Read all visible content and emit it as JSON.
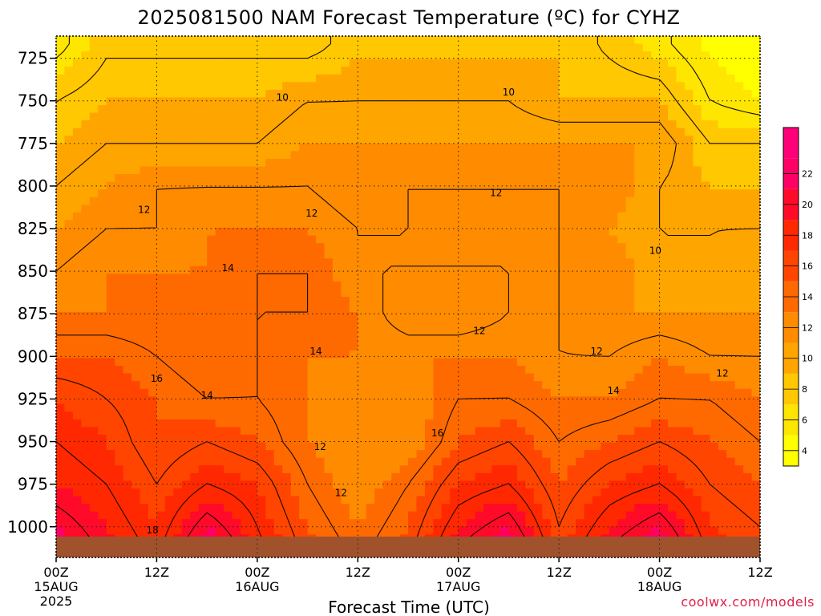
{
  "chart_data": {
    "type": "heatmap",
    "title": "2025081500 NAM Forecast Temperature (ºC) for CYHZ",
    "xlabel": "Forecast Time (UTC)",
    "ylabel": "",
    "x_ticks": [
      {
        "hour": 0,
        "label": "00Z",
        "sub": "15AUG",
        "sub2": "2025"
      },
      {
        "hour": 12,
        "label": "12Z",
        "sub": "",
        "sub2": ""
      },
      {
        "hour": 24,
        "label": "00Z",
        "sub": "16AUG",
        "sub2": ""
      },
      {
        "hour": 36,
        "label": "12Z",
        "sub": "",
        "sub2": ""
      },
      {
        "hour": 48,
        "label": "00Z",
        "sub": "17AUG",
        "sub2": ""
      },
      {
        "hour": 60,
        "label": "12Z",
        "sub": "",
        "sub2": ""
      },
      {
        "hour": 72,
        "label": "00Z",
        "sub": "18AUG",
        "sub2": ""
      },
      {
        "hour": 84,
        "label": "12Z",
        "sub": "",
        "sub2": ""
      }
    ],
    "xlim_hours": [
      0,
      84
    ],
    "y_ticks": [
      725,
      750,
      775,
      800,
      825,
      850,
      875,
      900,
      925,
      950,
      975,
      1000
    ],
    "ylim_hpa": [
      1018,
      712
    ],
    "hours": [
      0,
      6,
      12,
      18,
      24,
      30,
      36,
      42,
      48,
      54,
      60,
      66,
      72,
      78,
      84
    ],
    "levels_hpa": [
      725,
      750,
      775,
      800,
      825,
      850,
      875,
      900,
      925,
      950,
      975,
      1000
    ],
    "temperature_c": [
      [
        6,
        8,
        8,
        8,
        8,
        8,
        9,
        9,
        9,
        9,
        9,
        8,
        7,
        5,
        4
      ],
      [
        8,
        9,
        9,
        9,
        9,
        10,
        10,
        10,
        10,
        10,
        9,
        9,
        9,
        6,
        5
      ],
      [
        9,
        10,
        10,
        10,
        10,
        11,
        11,
        11,
        11,
        11,
        11,
        11,
        11,
        8,
        8
      ],
      [
        10,
        11,
        12,
        12,
        12,
        12,
        11,
        12,
        12,
        12,
        12,
        12,
        10,
        9,
        9
      ],
      [
        11,
        12,
        12,
        13,
        13,
        13,
        12,
        12,
        12,
        12,
        12,
        11,
        10,
        10,
        10
      ],
      [
        12,
        13,
        13,
        13,
        14,
        14,
        12,
        12,
        12,
        12,
        12,
        12,
        10,
        10,
        11
      ],
      [
        13,
        13,
        13,
        14,
        14,
        14,
        13,
        11,
        11,
        12,
        12,
        11,
        11,
        11,
        11
      ],
      [
        15,
        15,
        14,
        13,
        14,
        13,
        13,
        13,
        13,
        13,
        12,
        12,
        13,
        12,
        12
      ],
      [
        17,
        16,
        15,
        14,
        14,
        13,
        12,
        12,
        14,
        14,
        13,
        13,
        14,
        14,
        13
      ],
      [
        18,
        17,
        15,
        16,
        15,
        13,
        12,
        12,
        15,
        16,
        14,
        15,
        16,
        15,
        14
      ],
      [
        19,
        18,
        16,
        18,
        17,
        14,
        12,
        14,
        17,
        18,
        15,
        17,
        18,
        16,
        15
      ],
      [
        21,
        19,
        17,
        21,
        18,
        15,
        13,
        15,
        19,
        21,
        16,
        19,
        21,
        17,
        16
      ]
    ],
    "contour_labels": [
      {
        "text": "10",
        "hour": 27,
        "hpa": 748
      },
      {
        "text": "10",
        "hour": 54,
        "hpa": 745
      },
      {
        "text": "12",
        "hour": 10.5,
        "hpa": 814
      },
      {
        "text": "12",
        "hour": 30.5,
        "hpa": 816
      },
      {
        "text": "12",
        "hour": 52.5,
        "hpa": 804
      },
      {
        "text": "10",
        "hour": 71.5,
        "hpa": 838
      },
      {
        "text": "14",
        "hour": 20.5,
        "hpa": 848
      },
      {
        "text": "14",
        "hour": 31,
        "hpa": 897
      },
      {
        "text": "12",
        "hour": 50.5,
        "hpa": 885
      },
      {
        "text": "12",
        "hour": 64.5,
        "hpa": 897
      },
      {
        "text": "12",
        "hour": 79.5,
        "hpa": 910
      },
      {
        "text": "16",
        "hour": 12,
        "hpa": 913
      },
      {
        "text": "14",
        "hour": 18,
        "hpa": 923
      },
      {
        "text": "14",
        "hour": 66.5,
        "hpa": 920
      },
      {
        "text": "16",
        "hour": 45.5,
        "hpa": 945
      },
      {
        "text": "12",
        "hour": 31.5,
        "hpa": 953
      },
      {
        "text": "12",
        "hour": 34,
        "hpa": 980
      },
      {
        "text": "18",
        "hour": 11.5,
        "hpa": 1002
      }
    ],
    "colorbar": {
      "ticks": [
        4,
        6,
        8,
        10,
        12,
        14,
        16,
        18,
        20,
        22
      ],
      "bands": [
        {
          "from": 3,
          "to": 5,
          "color": "#ffff00"
        },
        {
          "from": 5,
          "to": 7,
          "color": "#ffe600"
        },
        {
          "from": 7,
          "to": 9,
          "color": "#ffc800"
        },
        {
          "from": 9,
          "to": 11,
          "color": "#ffa500"
        },
        {
          "from": 11,
          "to": 13,
          "color": "#ff8c00"
        },
        {
          "from": 13,
          "to": 15,
          "color": "#ff6a00"
        },
        {
          "from": 15,
          "to": 17,
          "color": "#ff4500"
        },
        {
          "from": 17,
          "to": 19,
          "color": "#ff2800"
        },
        {
          "from": 19,
          "to": 21,
          "color": "#ff0a28"
        },
        {
          "from": 21,
          "to": 23,
          "color": "#ff0064"
        },
        {
          "from": 23,
          "to": 25,
          "color": "#ff0078"
        }
      ],
      "range": [
        3,
        25
      ]
    },
    "ground_color": "#a0522d",
    "grid": true,
    "grid_style": "dotted",
    "legend": "colorbar-right"
  },
  "credit": "coolwx.com/models"
}
